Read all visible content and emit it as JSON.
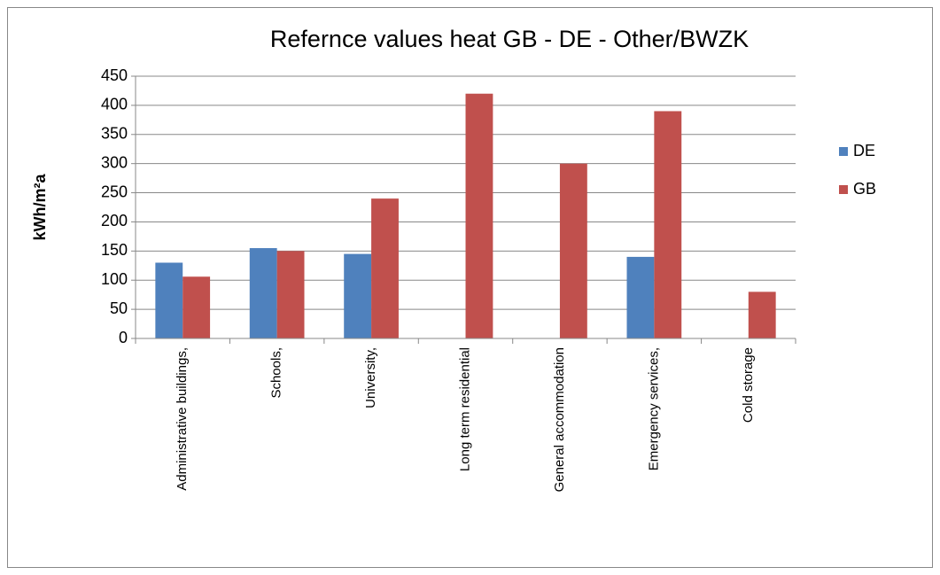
{
  "chart_data": {
    "type": "bar",
    "title": "Refernce values heat GB - DE - Other/BWZK",
    "y_label": "kWh/m²a",
    "categories": [
      "Administrative buildings,",
      "Schools,",
      "University,",
      "Long term residential",
      "General accommodation",
      "Emergency services,",
      "Cold storage"
    ],
    "series": [
      {
        "name": "DE",
        "color": "#4f81bd",
        "values": [
          130,
          155,
          145,
          null,
          null,
          140,
          null
        ]
      },
      {
        "name": "GB",
        "color": "#c0504d",
        "values": [
          106,
          150,
          240,
          420,
          300,
          390,
          80
        ]
      }
    ],
    "ylim": [
      0,
      450
    ],
    "yticks": [
      0,
      50,
      100,
      150,
      200,
      250,
      300,
      350,
      400,
      450
    ],
    "grid": true,
    "legend": "right"
  }
}
